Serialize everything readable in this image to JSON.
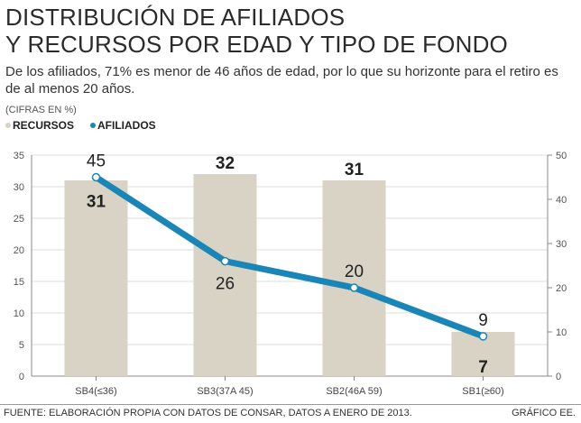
{
  "title_line1": "DISTRIBUCIÓN DE AFILIADOS",
  "title_line2": "Y RECURSOS POR EDAD Y TIPO DE FONDO",
  "subtitle": "De los afiliados, 71% es menor de 46 años de edad, por lo que su horizonte para el retiro es de al menos 20 años.",
  "unit_note": "(CIFRAS EN %)",
  "source": "FUENTE: ELABORACIÓN PROPIA CON DATOS DE CONSAR, DATOS A ENERO DE 2013.",
  "credit": "GRÁFICO EE.",
  "colors": {
    "bar": "#d8d3c4",
    "line": "#1a86b8",
    "grid": "#dcdcdc"
  },
  "chart_data": {
    "type": "bar",
    "categories": [
      "SB4(≤36)",
      "SB3(37A 45)",
      "SB2(46A 59)",
      "SB1(≥60)"
    ],
    "series": [
      {
        "name": "RECURSOS",
        "type": "bar",
        "axis": "left",
        "values": [
          31,
          32,
          31,
          7
        ]
      },
      {
        "name": "AFILIADOS",
        "type": "line",
        "axis": "right",
        "values": [
          45,
          26,
          20,
          9
        ]
      }
    ],
    "y_left": {
      "range": [
        0,
        35
      ],
      "ticks": [
        "0",
        "5",
        "10",
        "15",
        "20",
        "25",
        "30",
        "35"
      ]
    },
    "y_right": {
      "range": [
        0,
        50
      ],
      "ticks": [
        "0",
        "10",
        "20",
        "30",
        "40",
        "50"
      ]
    },
    "grid": true,
    "legend_position": "top-left"
  }
}
